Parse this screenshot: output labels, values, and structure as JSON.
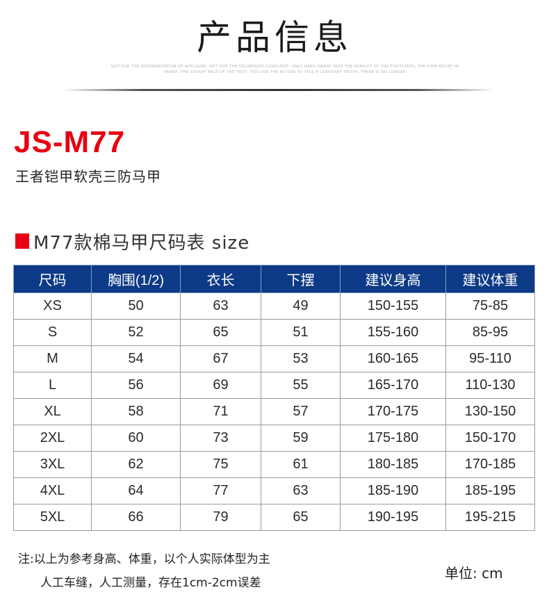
{
  "header": {
    "title": "产品信息",
    "tagline_line1": "NOT FOR THE INTERPRETATION OF APPLAUSE; NOT FOR THE DELIBERATE CONQUEST; ONLY HARD SWEAT INTO THE PURSUIT OF THE FOOTSTEPS, THE FIRM BELIEF IN",
    "tagline_line2": "HEART, THE STEADY PACE OF THE FOOT, YOU USE THE ACTION TO TELL A CONSTANT TRUTH, THERE IS NO LONGER"
  },
  "product": {
    "model": "JS-M77",
    "name": "王者铠甲软壳三防马甲"
  },
  "size_chart": {
    "title": "M77款棉马甲尺码表 size",
    "columns": [
      "尺码",
      "胸围(1/2)",
      "衣长",
      "下摆",
      "建议身高",
      "建议体重"
    ],
    "rows": [
      [
        "XS",
        "50",
        "63",
        "49",
        "150-155",
        "75-85"
      ],
      [
        "S",
        "52",
        "65",
        "51",
        "155-160",
        "85-95"
      ],
      [
        "M",
        "54",
        "67",
        "53",
        "160-165",
        "95-110"
      ],
      [
        "L",
        "56",
        "69",
        "55",
        "165-170",
        "110-130"
      ],
      [
        "XL",
        "58",
        "71",
        "57",
        "170-175",
        "130-150"
      ],
      [
        "2XL",
        "60",
        "73",
        "59",
        "175-180",
        "150-170"
      ],
      [
        "3XL",
        "62",
        "75",
        "61",
        "180-185",
        "170-185"
      ],
      [
        "4XL",
        "64",
        "77",
        "63",
        "185-190",
        "185-195"
      ],
      [
        "5XL",
        "66",
        "79",
        "65",
        "190-195",
        "195-215"
      ]
    ]
  },
  "note": {
    "line1": "注:以上为参考身高、体重，以个人实际体型为主",
    "line2": "人工车缝，人工测量，存在1cm-2cm误差",
    "unit": "单位:  cm"
  },
  "colors": {
    "accent_red": "#e60012",
    "header_blue": "#0d3a86"
  }
}
